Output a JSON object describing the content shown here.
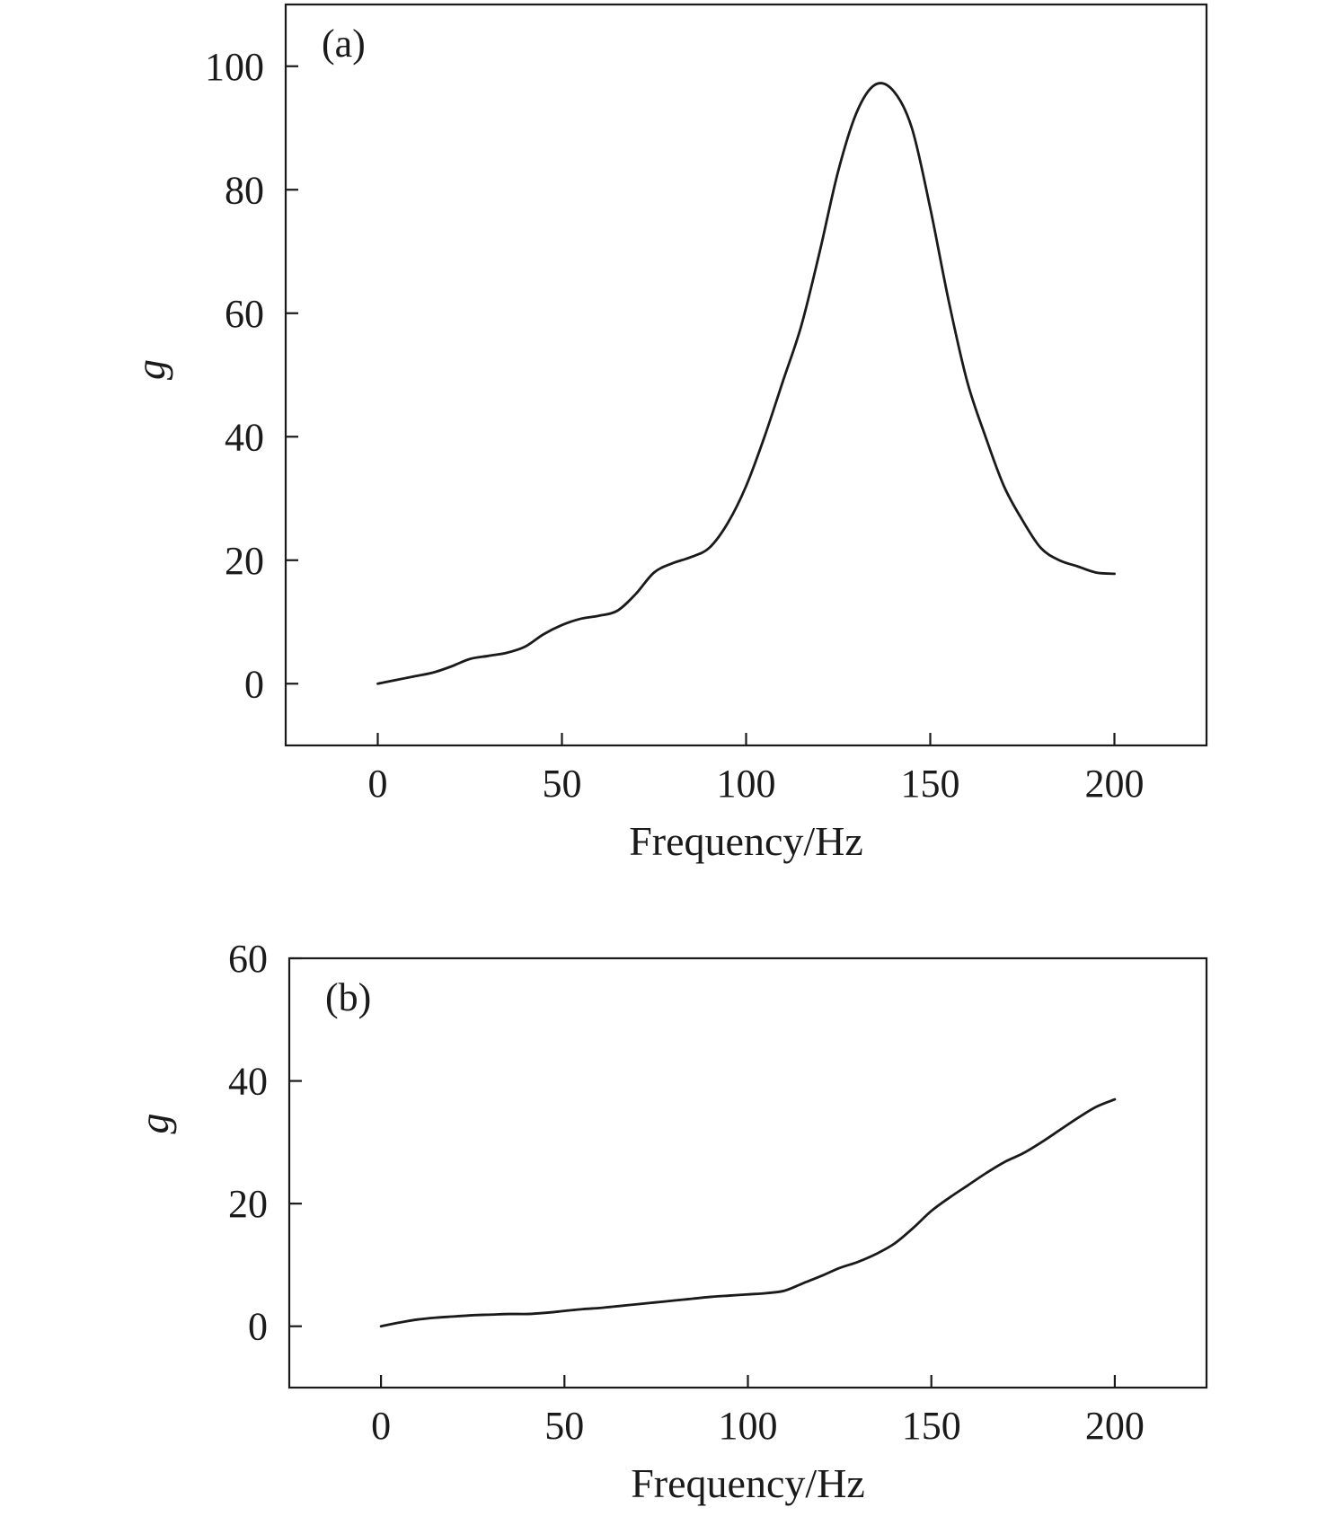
{
  "chart_data": [
    {
      "type": "line",
      "panel_label": "(a)",
      "xlabel": "Frequency/Hz",
      "ylabel": "g",
      "xlim": [
        -25,
        225
      ],
      "ylim": [
        -10,
        110
      ],
      "xticks": [
        0,
        50,
        100,
        150,
        200
      ],
      "yticks": [
        0,
        20,
        40,
        60,
        80,
        100
      ],
      "grid": false,
      "series": [
        {
          "x": [
            0,
            5,
            10,
            15,
            20,
            25,
            30,
            35,
            40,
            45,
            50,
            55,
            60,
            65,
            70,
            75,
            80,
            85,
            90,
            95,
            100,
            105,
            110,
            115,
            120,
            125,
            130,
            135,
            140,
            145,
            150,
            155,
            160,
            165,
            170,
            175,
            180,
            185,
            190,
            195,
            200
          ],
          "y": [
            0,
            0.6,
            1.2,
            1.8,
            2.8,
            4.0,
            4.5,
            5.0,
            6.0,
            8.0,
            9.5,
            10.5,
            11.0,
            11.8,
            14.5,
            18.0,
            19.5,
            20.5,
            22.0,
            26.0,
            32.0,
            40.0,
            49.0,
            58.0,
            70.0,
            83.0,
            92.5,
            97.0,
            96.0,
            90.0,
            77.0,
            62.0,
            49.0,
            40.0,
            32.0,
            26.5,
            22.0,
            20.0,
            19.0,
            18.0,
            17.8
          ]
        }
      ]
    },
    {
      "type": "line",
      "panel_label": "(b)",
      "xlabel": "Frequency/Hz",
      "ylabel": "g",
      "xlim": [
        -25,
        225
      ],
      "ylim": [
        -10,
        60
      ],
      "xticks": [
        0,
        50,
        100,
        150,
        200
      ],
      "yticks": [
        0,
        20,
        40,
        60
      ],
      "grid": false,
      "series": [
        {
          "x": [
            0,
            5,
            10,
            15,
            20,
            25,
            30,
            35,
            40,
            45,
            50,
            55,
            60,
            65,
            70,
            75,
            80,
            85,
            90,
            95,
            100,
            105,
            110,
            115,
            120,
            125,
            130,
            135,
            140,
            145,
            150,
            155,
            160,
            165,
            170,
            175,
            180,
            185,
            190,
            195,
            200
          ],
          "y": [
            0,
            0.6,
            1.1,
            1.4,
            1.6,
            1.8,
            1.9,
            2.0,
            2.0,
            2.2,
            2.5,
            2.8,
            3.0,
            3.3,
            3.6,
            3.9,
            4.2,
            4.5,
            4.8,
            5.0,
            5.2,
            5.4,
            5.8,
            7.0,
            8.2,
            9.5,
            10.5,
            11.8,
            13.5,
            16.0,
            18.8,
            21.0,
            23.0,
            25.0,
            26.8,
            28.2,
            30.0,
            32.0,
            34.0,
            35.8,
            37.0
          ]
        }
      ]
    }
  ]
}
